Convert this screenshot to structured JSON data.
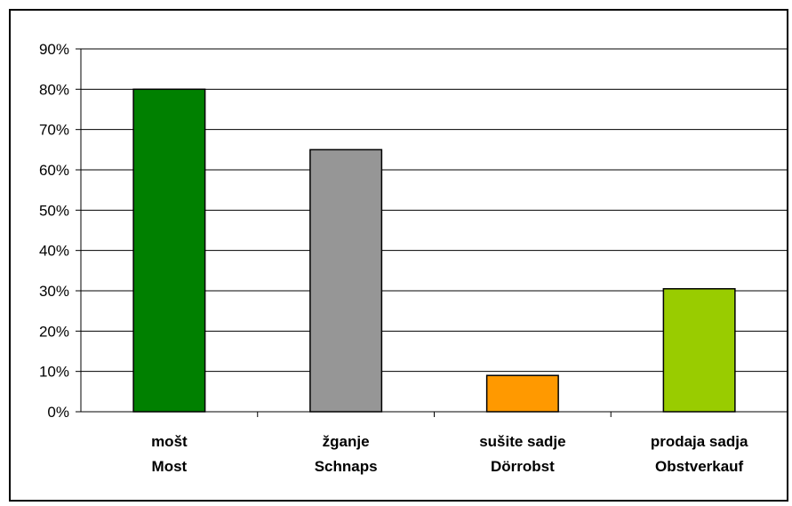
{
  "chart_data": {
    "type": "bar",
    "categories": [
      [
        "mošt",
        "Most"
      ],
      [
        "žganje",
        "Schnaps"
      ],
      [
        "sušite sadje",
        "Dörrobst"
      ],
      [
        "prodaja sadja",
        "Obstverkauf"
      ]
    ],
    "values": [
      80,
      65,
      9,
      30.5
    ],
    "colors": [
      "#008000",
      "#969696",
      "#ff9900",
      "#99cc00"
    ],
    "ylim": [
      0,
      90
    ],
    "yticks": [
      0,
      10,
      20,
      30,
      40,
      50,
      60,
      70,
      80,
      90
    ],
    "y_tick_format": "%",
    "grid": true,
    "legend": "none"
  }
}
